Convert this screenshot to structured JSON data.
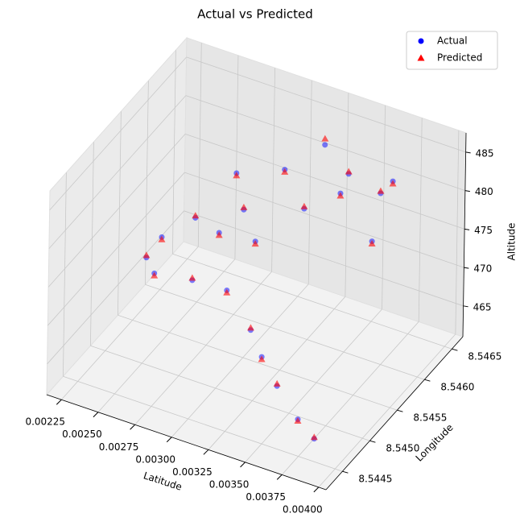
{
  "chart_data": {
    "type": "scatter3d",
    "title": "Actual vs Predicted",
    "xlabel": "Latitude",
    "ylabel": "Longitude",
    "zlabel": "Altitude",
    "xlim": [
      0.00215,
      0.00405
    ],
    "ylim": [
      8.5442,
      8.5467
    ],
    "zlim": [
      461,
      487.5
    ],
    "xticks": [
      {
        "value": 0.00225,
        "label": "0.00225"
      },
      {
        "value": 0.0025,
        "label": "0.00250"
      },
      {
        "value": 0.00275,
        "label": "0.00275"
      },
      {
        "value": 0.003,
        "label": "0.00300"
      },
      {
        "value": 0.00325,
        "label": "0.00325"
      },
      {
        "value": 0.0035,
        "label": "0.00350"
      },
      {
        "value": 0.00375,
        "label": "0.00375"
      },
      {
        "value": 0.004,
        "label": "0.00400"
      }
    ],
    "yticks": [
      {
        "value": 8.5445,
        "label": "8.5445"
      },
      {
        "value": 8.545,
        "label": "8.5450"
      },
      {
        "value": 8.5455,
        "label": "8.5455"
      },
      {
        "value": 8.546,
        "label": "8.5460"
      },
      {
        "value": 8.5465,
        "label": "8.5465"
      }
    ],
    "zticks": [
      465,
      470,
      475,
      480,
      485
    ],
    "grid": true,
    "legend": "upper right",
    "series": [
      {
        "name": "Actual",
        "color": "#0000ff",
        "marker": "circle",
        "x": [
          0.003828,
          0.00367,
          0.00348,
          0.003328,
          0.003205,
          0.002994,
          0.002777,
          0.002547,
          0.002446,
          0.00253,
          0.002728,
          0.002872,
          0.002956,
          0.003009,
          0.003045,
          0.003191,
          0.003281,
          0.003324,
          0.003434,
          0.003442,
          0.003607,
          0.003615,
          0.003651
        ],
        "y": [
          8.544575,
          8.5447,
          8.544825,
          8.54495,
          8.545075,
          8.5452,
          8.54515,
          8.545075,
          8.5452,
          8.54525,
          8.545325,
          8.545375,
          8.54545,
          8.54545,
          8.545575,
          8.5457,
          8.545825,
          8.546075,
          8.546075,
          8.5462,
          8.5462,
          8.546325,
          8.54645
        ],
        "z": [
          463.2,
          463.7,
          465.8,
          467.6,
          469.3,
          472.1,
          472.4,
          472.4,
          472.8,
          475.6,
          478.8,
          477.4,
          485.1,
          480.7,
          475.8,
          485.1,
          479.6,
          486.2,
          480.6,
          482.2,
          474.5,
          479.8,
          480.6
        ]
      },
      {
        "name": "Predicted",
        "color": "#ff0000",
        "marker": "triangle",
        "x": [
          0.003828,
          0.00367,
          0.00348,
          0.003328,
          0.003205,
          0.002994,
          0.002777,
          0.002547,
          0.002446,
          0.00253,
          0.002728,
          0.002872,
          0.002956,
          0.003009,
          0.003045,
          0.003191,
          0.003281,
          0.003324,
          0.003434,
          0.003442,
          0.003607,
          0.003615,
          0.003651
        ],
        "y": [
          8.544575,
          8.5447,
          8.544825,
          8.54495,
          8.545075,
          8.5452,
          8.54515,
          8.545075,
          8.5452,
          8.54525,
          8.545325,
          8.545375,
          8.54545,
          8.54545,
          8.545575,
          8.5457,
          8.545825,
          8.546075,
          8.546075,
          8.5462,
          8.5462,
          8.546325,
          8.54645
        ],
        "z": [
          463.4,
          463.5,
          466.1,
          467.3,
          469.6,
          471.8,
          472.7,
          472.1,
          473.1,
          475.3,
          479.1,
          477.1,
          484.8,
          481.0,
          475.5,
          484.8,
          479.9,
          487.0,
          480.3,
          482.5,
          474.2,
          480.1,
          480.3
        ]
      }
    ]
  }
}
